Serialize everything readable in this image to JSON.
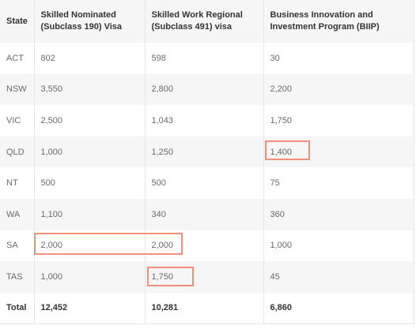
{
  "table": {
    "headers": [
      "State",
      "Skilled Nominated (Subclass 190) Visa",
      "Skilled Work Regional (Subclass 491) visa",
      "Business Innovation and Investment Program (BIIP)"
    ],
    "rows": [
      [
        "ACT",
        "802",
        "598",
        "30"
      ],
      [
        "NSW",
        "3,550",
        "2,800",
        "2,200"
      ],
      [
        "VIC",
        "2,500",
        "1,043",
        "1,750"
      ],
      [
        "QLD",
        "1,000",
        "1,250",
        "1,400"
      ],
      [
        "NT",
        "500",
        "500",
        "75"
      ],
      [
        "WA",
        "1,100",
        "340",
        "360"
      ],
      [
        "SA",
        "2,000",
        "2,000",
        "1,000"
      ],
      [
        "TAS",
        "1,000",
        "1,750",
        "45"
      ]
    ],
    "total": [
      "Total",
      "12,452",
      "10,281",
      "6,860"
    ]
  },
  "highlight_color": "#f0907a"
}
